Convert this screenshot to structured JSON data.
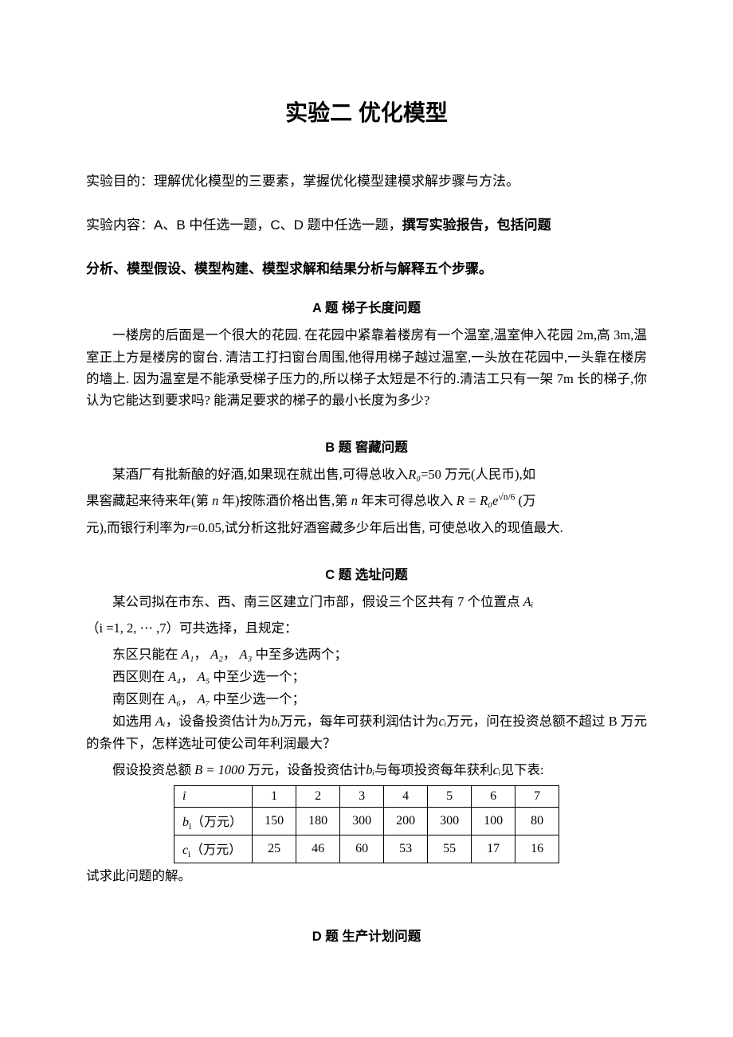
{
  "title": "实验二 优化模型",
  "intro": {
    "purpose_label": "实验目的：",
    "purpose_text": "理解优化模型的三要素，掌握优化模型建模求解步骤与方法。",
    "content_label": "实验内容：",
    "content_text_1": "A、B 中任选一题，C、D 题中任选一题，",
    "content_bold_1": "撰写实验报告，包括问题",
    "content_bold_2": "分析、模型假设、模型构建、模型求解和结果分析与解释五个步骤。"
  },
  "sectionA": {
    "title": "A 题 梯子长度问题",
    "body": "一楼房的后面是一个很大的花园. 在花园中紧靠着楼房有一个温室,温室伸入花园 2m,高 3m,温室正上方是楼房的窗台. 清洁工打扫窗台周围,他得用梯子越过温室,一头放在花园中,一头靠在楼房的墙上. 因为温室是不能承受梯子压力的,所以梯子太短是不行的.清洁工只有一架 7m 长的梯子,你认为它能达到要求吗? 能满足要求的梯子的最小长度为多少?"
  },
  "sectionB": {
    "title": "B 题 窖藏问题",
    "p1_a": "某酒厂有批新酿的好酒,如果现在就出售,可得总收入",
    "p1_b": "=50 万元(人民币),如",
    "p2_a": "果窖藏起来待来年(第 ",
    "p2_b": " 年)按陈酒价格出售,第 ",
    "p2_c": " 年末可得总收入 ",
    "p2_d": " (万",
    "p3_a": "元),而银行利率为",
    "p3_b": "=0.05,试分析这批好酒窖藏多少年后出售, 可使总收入的现值最大."
  },
  "sectionC": {
    "title": "C 题 选址问题",
    "p1_a": "某公司拟在市东、西、南三区建立门市部，假设三个区共有 7 个位置点 ",
    "p2": "（i =1, 2, ⋯ ,7）可共选择，且规定：",
    "r1_a": "东区只能在 ",
    "r1_b": " 中至多选两个；",
    "r2_a": "西区则在 ",
    "r2_b": " 中至少选一个；",
    "r3_a": "南区则在 ",
    "r3_b": " 中至少选一个；",
    "p3_a": "如选用 ",
    "p3_b": "，设备投资估计为",
    "p3_c": "万元，每年可获利润估计为",
    "p3_d": "万元，问在投资总额不超过 B 万元的条件下，怎样选址可使公司年利润最大？",
    "p4_a": "假设投资总额 ",
    "p4_b": " 万元，设备投资估计",
    "p4_c": "与每项投资每年获利",
    "p4_d": "见下表:",
    "closing": "试求此问题的解。"
  },
  "table": {
    "header_i": "i",
    "cols": [
      "1",
      "2",
      "3",
      "4",
      "5",
      "6",
      "7"
    ],
    "row_b_label": "bᵢ（万元）",
    "row_b": [
      "150",
      "180",
      "300",
      "200",
      "300",
      "100",
      "80"
    ],
    "row_c_label": "cᵢ（万元）",
    "row_c": [
      "25",
      "46",
      "60",
      "53",
      "55",
      "17",
      "16"
    ]
  },
  "sectionD": {
    "title": "D 题 生产计划问题"
  },
  "sym": {
    "R0": "R₀",
    "n": "n",
    "r": "r",
    "Ai": "Aᵢ",
    "A1": "A₁",
    "A2": "A₂",
    "A3": "A₃",
    "A4": "A₄",
    "A5": "A₅",
    "A6": "A₆",
    "A7": "A₇",
    "bi": "bᵢ",
    "ci": "cᵢ",
    "B1000": "B = 1000",
    "Rexpr": "R = R₀e",
    "exp": "√n/6"
  }
}
